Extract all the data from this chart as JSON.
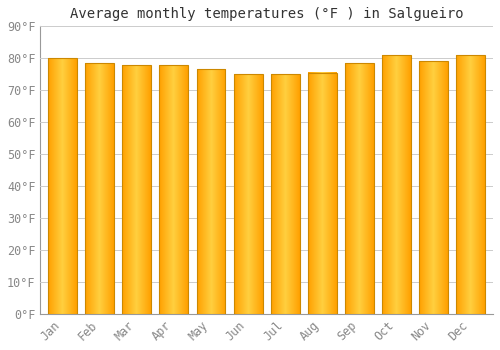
{
  "title": "Average monthly temperatures (°F ) in Salgueiro",
  "months": [
    "Jan",
    "Feb",
    "Mar",
    "Apr",
    "May",
    "Jun",
    "Jul",
    "Aug",
    "Sep",
    "Oct",
    "Nov",
    "Dec"
  ],
  "values": [
    80.0,
    78.5,
    77.8,
    77.8,
    76.5,
    75.0,
    75.0,
    75.5,
    78.5,
    81.0,
    79.0,
    81.0
  ],
  "bar_edge_color": "#CC8800",
  "bar_center_color": "#FFD040",
  "bar_side_color": "#FFA000",
  "ylim": [
    0,
    90
  ],
  "yticks": [
    0,
    10,
    20,
    30,
    40,
    50,
    60,
    70,
    80,
    90
  ],
  "ytick_labels": [
    "0°F",
    "10°F",
    "20°F",
    "30°F",
    "40°F",
    "50°F",
    "60°F",
    "70°F",
    "80°F",
    "90°F"
  ],
  "background_color": "#FFFFFF",
  "grid_color": "#CCCCCC",
  "title_fontsize": 10,
  "tick_fontsize": 8.5,
  "bar_width": 0.78
}
